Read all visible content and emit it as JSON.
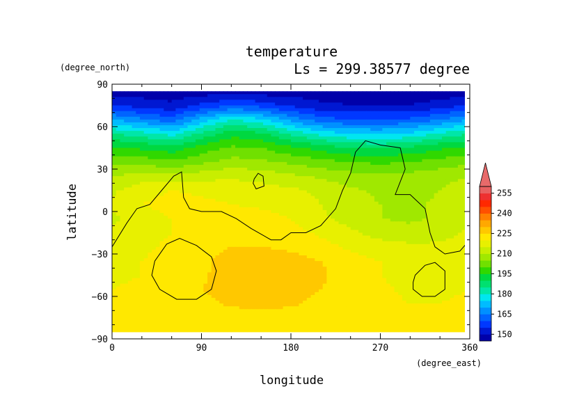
{
  "chart_data": {
    "type": "heatmap",
    "title": "temperature",
    "subtitle": "Ls = 299.38577 degree",
    "xlabel": "longitude",
    "ylabel": "latitude",
    "xunit": "(degree_east)",
    "yunit": "(degree_north)",
    "xlim": [
      0,
      360
    ],
    "ylim": [
      -90,
      90
    ],
    "xticks": [
      "0",
      "90",
      "180",
      "270",
      "360"
    ],
    "yticks": [
      "90",
      "60",
      "30",
      "0",
      "−30",
      "−60",
      "−90"
    ],
    "xtick_values": [
      0,
      90,
      180,
      270,
      360
    ],
    "ytick_values": [
      90,
      60,
      30,
      0,
      -30,
      -60,
      -90
    ],
    "colorbar": {
      "levels": [
        145,
        150,
        155,
        160,
        165,
        170,
        175,
        180,
        185,
        190,
        195,
        200,
        205,
        210,
        215,
        220,
        225,
        230,
        235,
        240,
        245,
        250,
        255,
        260
      ],
      "labels": [
        "150",
        "165",
        "180",
        "195",
        "210",
        "225",
        "240",
        "255"
      ],
      "label_values": [
        150,
        165,
        180,
        195,
        210,
        225,
        240,
        255
      ],
      "colors": [
        "#0000aa",
        "#0018d2",
        "#0038ff",
        "#0064ff",
        "#0090ff",
        "#00bcff",
        "#00e6f0",
        "#00e6a8",
        "#00e070",
        "#00d840",
        "#30d800",
        "#70e000",
        "#a0e800",
        "#c8ee00",
        "#e8f000",
        "#ffe800",
        "#ffc800",
        "#ffa800",
        "#ff8000",
        "#ff5000",
        "#ff2800",
        "#ee3030",
        "#e86060"
      ]
    },
    "field_description_rows": {
      "lat": [
        85,
        75,
        65,
        55,
        45,
        35,
        25,
        15,
        5,
        -5,
        -15,
        -25,
        -35,
        -45,
        -55,
        -65,
        -75,
        -85
      ],
      "lon": [
        0,
        30,
        60,
        90,
        120,
        150,
        180,
        210,
        240,
        270,
        300,
        330,
        360
      ],
      "values": [
        [
          147,
          147,
          147,
          147,
          147,
          147,
          147,
          147,
          147,
          147,
          147,
          147,
          147
        ],
        [
          155,
          153,
          151,
          156,
          160,
          158,
          154,
          151,
          150,
          150,
          150,
          152,
          155
        ],
        [
          170,
          166,
          162,
          172,
          180,
          176,
          168,
          162,
          160,
          160,
          161,
          165,
          170
        ],
        [
          185,
          182,
          178,
          186,
          193,
          191,
          184,
          178,
          175,
          174,
          176,
          181,
          185
        ],
        [
          196,
          194,
          192,
          197,
          201,
          200,
          196,
          193,
          190,
          189,
          191,
          194,
          196
        ],
        [
          204,
          203,
          201,
          204,
          207,
          206,
          204,
          202,
          200,
          199,
          200,
          202,
          204
        ],
        [
          210,
          212,
          211,
          213,
          214,
          213,
          211,
          209,
          207,
          206,
          207,
          208,
          210
        ],
        [
          214,
          218,
          220,
          219,
          218,
          217,
          216,
          214,
          211,
          209,
          208,
          210,
          214
        ],
        [
          216,
          220,
          222,
          221,
          220,
          219,
          218,
          215,
          212,
          210,
          209,
          211,
          216
        ],
        [
          214,
          217,
          220,
          222,
          223,
          222,
          220,
          216,
          213,
          210,
          209,
          211,
          214
        ],
        [
          216,
          218,
          220,
          222,
          224,
          224,
          222,
          219,
          216,
          213,
          212,
          213,
          216
        ],
        [
          217,
          219,
          221,
          223,
          225,
          225,
          224,
          222,
          219,
          217,
          216,
          216,
          217
        ],
        [
          219,
          220,
          222,
          224,
          227,
          228,
          227,
          225,
          222,
          220,
          219,
          219,
          219
        ],
        [
          219,
          220,
          222,
          224,
          228,
          229,
          228,
          226,
          222,
          220,
          218,
          218,
          219
        ],
        [
          220,
          221,
          222,
          225,
          228,
          229,
          228,
          225,
          222,
          221,
          219,
          219,
          220
        ],
        [
          221,
          222,
          222,
          223,
          226,
          227,
          226,
          223,
          222,
          221,
          220,
          220,
          221
        ],
        [
          222,
          222,
          222,
          222,
          222,
          222,
          222,
          222,
          222,
          222,
          222,
          222,
          222
        ],
        [
          222,
          222,
          222,
          222,
          222,
          222,
          222,
          222,
          222,
          222,
          222,
          222,
          222
        ]
      ]
    },
    "contours": [
      [
        [
          0,
          -25
        ],
        [
          15,
          -8
        ],
        [
          25,
          2
        ],
        [
          38,
          5
        ],
        [
          50,
          15
        ],
        [
          62,
          25
        ],
        [
          70,
          28
        ],
        [
          72,
          10
        ],
        [
          78,
          2
        ],
        [
          90,
          0
        ],
        [
          110,
          0
        ],
        [
          125,
          -5
        ],
        [
          140,
          -12
        ],
        [
          160,
          -20
        ],
        [
          170,
          -20
        ],
        [
          180,
          -15
        ],
        [
          195,
          -15
        ],
        [
          210,
          -10
        ],
        [
          225,
          2
        ],
        [
          232,
          15
        ],
        [
          240,
          27
        ],
        [
          245,
          42
        ],
        [
          255,
          50
        ],
        [
          270,
          47
        ],
        [
          290,
          45
        ],
        [
          295,
          30
        ],
        [
          285,
          12
        ],
        [
          300,
          12
        ],
        [
          315,
          2
        ],
        [
          320,
          -15
        ],
        [
          325,
          -25
        ],
        [
          335,
          -30
        ],
        [
          350,
          -28
        ],
        [
          360,
          -20
        ]
      ],
      [
        [
          143,
          23
        ],
        [
          147,
          27
        ],
        [
          152,
          25
        ],
        [
          153,
          18
        ],
        [
          145,
          16
        ],
        [
          142,
          20
        ],
        [
          143,
          23
        ]
      ],
      [
        [
          43,
          -35
        ],
        [
          55,
          -23
        ],
        [
          68,
          -19
        ],
        [
          85,
          -24
        ],
        [
          100,
          -32
        ],
        [
          105,
          -42
        ],
        [
          100,
          -55
        ],
        [
          85,
          -62
        ],
        [
          65,
          -62
        ],
        [
          48,
          -55
        ],
        [
          40,
          -45
        ],
        [
          43,
          -35
        ]
      ],
      [
        [
          305,
          -45
        ],
        [
          315,
          -38
        ],
        [
          325,
          -36
        ],
        [
          335,
          -42
        ],
        [
          335,
          -55
        ],
        [
          325,
          -60
        ],
        [
          312,
          -60
        ],
        [
          303,
          -55
        ],
        [
          303,
          -50
        ],
        [
          305,
          -45
        ]
      ]
    ]
  }
}
